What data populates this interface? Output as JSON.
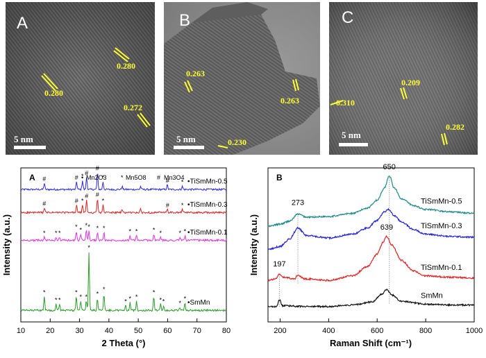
{
  "tem_panels": [
    {
      "panel_letter": "A",
      "scale_bar": "5 nm",
      "lattice_labels": [
        "0.280",
        "0.280",
        "0.272"
      ]
    },
    {
      "panel_letter": "B",
      "scale_bar": "5 nm",
      "lattice_labels": [
        "0.263",
        "0.263",
        "0.230"
      ]
    },
    {
      "panel_letter": "C",
      "scale_bar": "5 nm",
      "lattice_labels": [
        "0.310",
        "0.209",
        "0.282"
      ]
    }
  ],
  "chart_data": [
    {
      "type": "line",
      "panel_letter": "A",
      "xlabel": "2 Theta (°)",
      "ylabel": "Intensity (a.u.)",
      "xlim": [
        10,
        80
      ],
      "xticks": [
        10,
        20,
        30,
        40,
        50,
        60,
        70,
        80
      ],
      "legend": {
        "position": "top-center",
        "entries": [
          {
            "symbol": "•",
            "text": "Mn2O3"
          },
          {
            "symbol": "*",
            "text": "Mn5O8"
          },
          {
            "symbol": "#",
            "text": "Mn3O4"
          }
        ]
      },
      "series": [
        {
          "name": "TiSmMn-0.5",
          "color": "#2b2bd6",
          "baseline": 0.86,
          "peaks": [
            [
              18.0,
              0.04
            ],
            [
              29.0,
              0.05
            ],
            [
              31.0,
              0.06
            ],
            [
              32.4,
              0.08
            ],
            [
              36.1,
              0.11
            ],
            [
              38.0,
              0.05
            ],
            [
              44.5,
              0.02
            ],
            [
              50.8,
              0.02
            ],
            [
              59.9,
              0.03
            ],
            [
              65.0,
              0.02
            ]
          ],
          "markers": [
            [
              "#",
              18.0
            ],
            [
              "#",
              29.0
            ],
            [
              "*",
              31.0
            ],
            [
              "#",
              32.4
            ],
            [
              "#",
              36.1
            ],
            [
              "*",
              38.0
            ],
            [
              "#",
              60.0
            ],
            [
              "*",
              65.0
            ]
          ]
        },
        {
          "name": "TiSmMn-0.3",
          "color": "#e02020",
          "baseline": 0.71,
          "peaks": [
            [
              18.0,
              0.03
            ],
            [
              29.0,
              0.05
            ],
            [
              31.0,
              0.05
            ],
            [
              32.4,
              0.08
            ],
            [
              36.1,
              0.09
            ],
            [
              38.0,
              0.05
            ],
            [
              44.5,
              0.02
            ],
            [
              50.8,
              0.02
            ],
            [
              59.9,
              0.02
            ],
            [
              65.0,
              0.02
            ]
          ],
          "markers": [
            [
              "#",
              18.0
            ],
            [
              "#",
              29.0
            ],
            [
              "*",
              31.0
            ],
            [
              "#",
              32.4
            ],
            [
              "#",
              36.1
            ],
            [
              "*",
              38.0
            ],
            [
              "#",
              60.0
            ],
            [
              "*",
              65.0
            ]
          ]
        },
        {
          "name": "TiSmMn-0.1",
          "color": "#e030e0",
          "baseline": 0.53,
          "peaks": [
            [
              18.0,
              0.02
            ],
            [
              22.0,
              0.02
            ],
            [
              23.2,
              0.02
            ],
            [
              28.9,
              0.06
            ],
            [
              30.4,
              0.04
            ],
            [
              32.3,
              0.07
            ],
            [
              33.2,
              0.06
            ],
            [
              36.1,
              0.05
            ],
            [
              38.3,
              0.05
            ],
            [
              47.2,
              0.03
            ],
            [
              49.4,
              0.03
            ],
            [
              55.3,
              0.04
            ],
            [
              57.6,
              0.02
            ],
            [
              64.2,
              0.02
            ],
            [
              65.9,
              0.03
            ]
          ],
          "markers": [
            [
              "*",
              18.0
            ],
            [
              "*",
              22.0
            ],
            [
              "*",
              23.2
            ],
            [
              "*",
              28.9
            ],
            [
              "*",
              30.4
            ],
            [
              "*",
              32.3
            ],
            [
              "*",
              33.2
            ],
            [
              "*",
              36.1
            ],
            [
              "*",
              38.3
            ],
            [
              "*",
              47.2
            ],
            [
              "*",
              49.4
            ],
            [
              "*",
              55.3
            ],
            [
              "*",
              57.6
            ],
            [
              "*",
              64.2
            ],
            [
              "*",
              65.9
            ]
          ]
        },
        {
          "name": "SmMn",
          "color": "#2a9a2a",
          "baseline": 0.075,
          "peaks": [
            [
              18.0,
              0.09
            ],
            [
              22.0,
              0.04
            ],
            [
              23.2,
              0.04
            ],
            [
              28.9,
              0.09
            ],
            [
              30.4,
              0.06
            ],
            [
              32.3,
              0.06
            ],
            [
              33.2,
              0.38
            ],
            [
              36.1,
              0.08
            ],
            [
              38.3,
              0.11
            ],
            [
              45.7,
              0.03
            ],
            [
              47.2,
              0.05
            ],
            [
              49.4,
              0.06
            ],
            [
              55.3,
              0.09
            ],
            [
              57.6,
              0.04
            ],
            [
              58.6,
              0.03
            ],
            [
              64.2,
              0.02
            ],
            [
              65.9,
              0.05
            ]
          ],
          "markers": [
            [
              "*",
              18.0
            ],
            [
              "*",
              22.0
            ],
            [
              "*",
              23.2
            ],
            [
              "*",
              28.9
            ],
            [
              "*",
              30.4
            ],
            [
              "*",
              32.3
            ],
            [
              "*",
              33.2
            ],
            [
              "*",
              36.1
            ],
            [
              "*",
              38.3
            ],
            [
              "*",
              45.7
            ],
            [
              "*",
              47.2
            ],
            [
              "*",
              49.4
            ],
            [
              "*",
              55.3
            ],
            [
              "*",
              57.6
            ],
            [
              "*",
              58.6
            ],
            [
              "*",
              64.2
            ],
            [
              "*",
              65.9
            ]
          ]
        }
      ]
    },
    {
      "type": "line",
      "panel_letter": "B",
      "xlabel": "Raman Shift (cm⁻¹)",
      "ylabel": "Intensity (a.u.)",
      "xlim": [
        150,
        1000
      ],
      "xticks": [
        200,
        400,
        600,
        800,
        1000
      ],
      "peak_annotations": [
        {
          "label": "650",
          "x": 650
        },
        {
          "label": "273",
          "x": 273
        },
        {
          "label": "639",
          "x": 639
        },
        {
          "label": "197",
          "x": 197
        }
      ],
      "series": [
        {
          "name": "TiSmMn-0.5",
          "color": "#1f8a8a",
          "points": [
            [
              150,
              0.62
            ],
            [
              200,
              0.635
            ],
            [
              240,
              0.655
            ],
            [
              273,
              0.7
            ],
            [
              310,
              0.68
            ],
            [
              400,
              0.685
            ],
            [
              500,
              0.705
            ],
            [
              560,
              0.74
            ],
            [
              600,
              0.79
            ],
            [
              630,
              0.87
            ],
            [
              650,
              0.95
            ],
            [
              670,
              0.87
            ],
            [
              700,
              0.8
            ],
            [
              750,
              0.755
            ],
            [
              800,
              0.73
            ],
            [
              900,
              0.715
            ],
            [
              1000,
              0.705
            ]
          ]
        },
        {
          "name": "TiSmMn-0.3",
          "color": "#2323d6",
          "points": [
            [
              150,
              0.47
            ],
            [
              200,
              0.49
            ],
            [
              240,
              0.54
            ],
            [
              273,
              0.61
            ],
            [
              310,
              0.56
            ],
            [
              400,
              0.545
            ],
            [
              500,
              0.57
            ],
            [
              560,
              0.61
            ],
            [
              600,
              0.66
            ],
            [
              630,
              0.715
            ],
            [
              648,
              0.73
            ],
            [
              670,
              0.69
            ],
            [
              700,
              0.65
            ],
            [
              750,
              0.6
            ],
            [
              800,
              0.57
            ],
            [
              900,
              0.555
            ],
            [
              1000,
              0.55
            ]
          ]
        },
        {
          "name": "TiSmMn-0.1",
          "color": "#e02020",
          "points": [
            [
              150,
              0.27
            ],
            [
              180,
              0.28
            ],
            [
              197,
              0.31
            ],
            [
              215,
              0.29
            ],
            [
              260,
              0.28
            ],
            [
              273,
              0.305
            ],
            [
              300,
              0.28
            ],
            [
              400,
              0.27
            ],
            [
              500,
              0.3
            ],
            [
              560,
              0.36
            ],
            [
              600,
              0.44
            ],
            [
              625,
              0.52
            ],
            [
              639,
              0.555
            ],
            [
              660,
              0.5
            ],
            [
              700,
              0.4
            ],
            [
              750,
              0.33
            ],
            [
              800,
              0.3
            ],
            [
              900,
              0.29
            ],
            [
              1000,
              0.285
            ]
          ]
        },
        {
          "name": "SmMn",
          "color": "#111111",
          "points": [
            [
              150,
              0.1
            ],
            [
              185,
              0.1
            ],
            [
              197,
              0.145
            ],
            [
              210,
              0.105
            ],
            [
              300,
              0.1
            ],
            [
              400,
              0.1
            ],
            [
              500,
              0.11
            ],
            [
              580,
              0.13
            ],
            [
              620,
              0.18
            ],
            [
              639,
              0.21
            ],
            [
              660,
              0.175
            ],
            [
              700,
              0.135
            ],
            [
              800,
              0.115
            ],
            [
              900,
              0.11
            ],
            [
              1000,
              0.11
            ]
          ]
        }
      ]
    }
  ]
}
